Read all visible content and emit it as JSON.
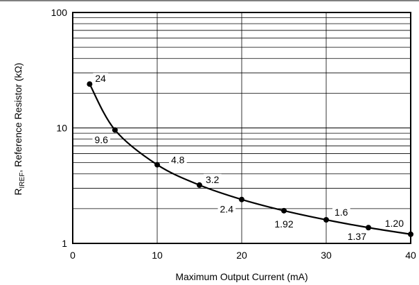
{
  "chart_data": {
    "type": "line",
    "title": "",
    "xlabel": "Maximum Output Current (mA)",
    "ylabel": {
      "main": "R",
      "sub": "IREF",
      "rest": ", Reference Resistor (kΩ)"
    },
    "xlim": [
      0,
      40
    ],
    "ylim": [
      1,
      100
    ],
    "yscale": "log",
    "grid": true,
    "x_ticks": [
      "0",
      "10",
      "20",
      "30",
      "40"
    ],
    "y_ticks": [
      "1",
      "10",
      "100"
    ],
    "series": [
      {
        "x": [
          2,
          5,
          10,
          15,
          20,
          25,
          30,
          35,
          40
        ],
        "y": [
          24,
          9.6,
          4.8,
          3.2,
          2.4,
          1.92,
          1.6,
          1.37,
          1.2
        ]
      }
    ],
    "point_labels": [
      "24",
      "9.6",
      "4.8",
      "3.2",
      "2.4",
      "1.92",
      "1.6",
      "1.37",
      "1.20"
    ]
  }
}
